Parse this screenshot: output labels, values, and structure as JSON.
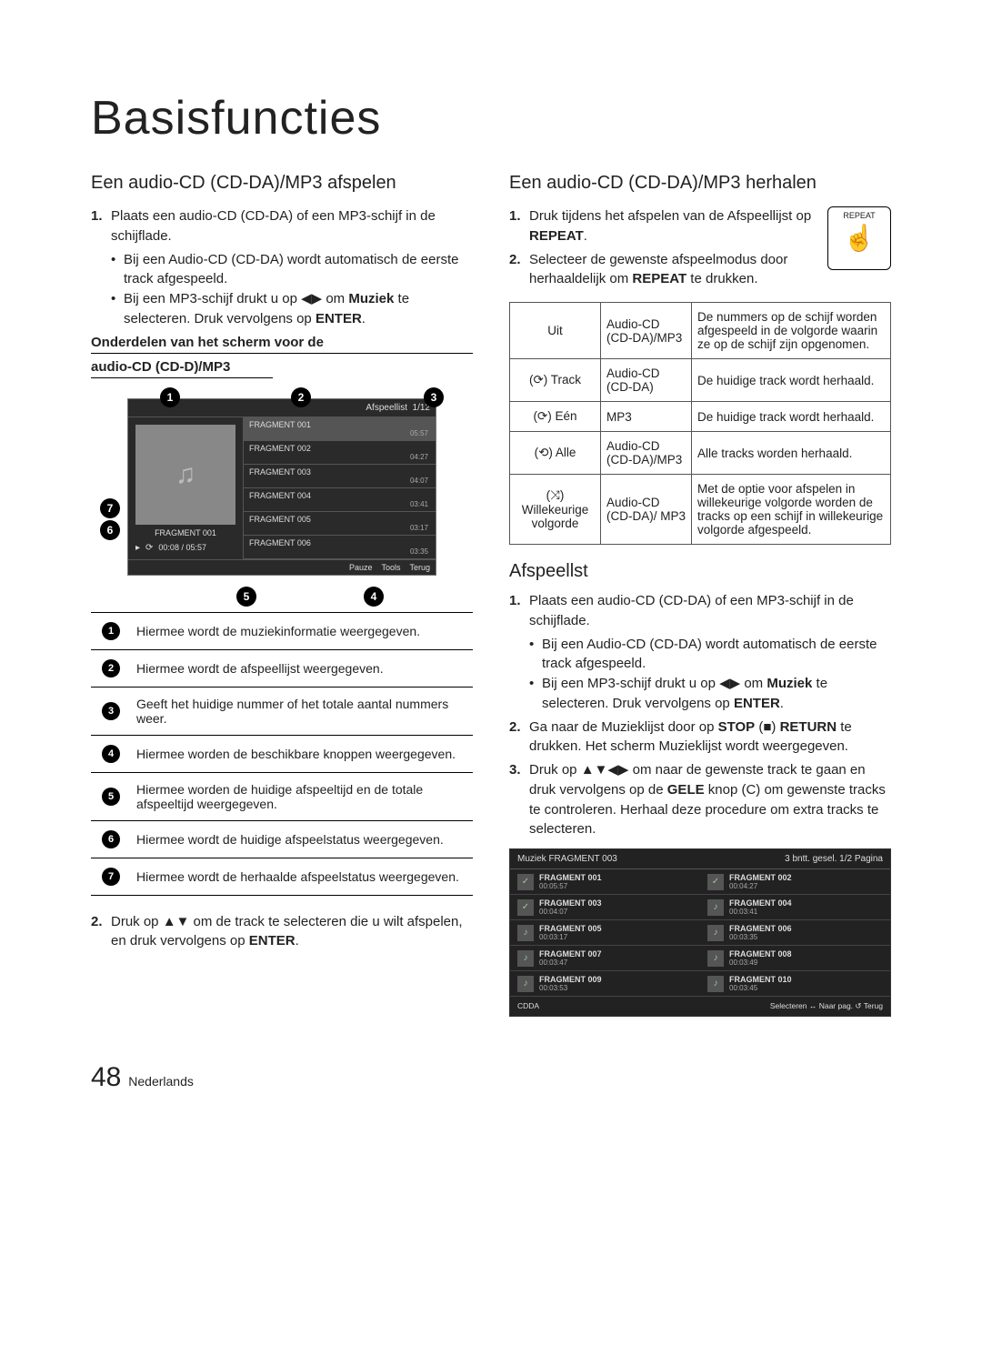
{
  "page": {
    "title": "Basisfuncties",
    "number": "48",
    "lang": "Nederlands"
  },
  "left": {
    "heading": "Een audio-CD (CD-DA)/MP3 afspelen",
    "step1_num": "1.",
    "step1_intro": "Plaats een audio-CD (CD-DA) of een MP3-schijf in de schijflade.",
    "step1_b1": "Bij een Audio-CD (CD-DA) wordt automatisch de eerste track afgespeeld.",
    "step1_b2a": "Bij een MP3-schijf drukt u op ◀▶ om ",
    "step1_b2b": "Muziek",
    "step1_b2c": " te selecteren. Druk vervolgens op ",
    "step1_b2d": "ENTER",
    "step1_b2e": ".",
    "sub1": "Onderdelen van het scherm voor de",
    "sub2": "audio-CD (CD-D)/MP3",
    "player": {
      "playlist_label": "Afspeellist",
      "counter": "1/12",
      "frags": [
        {
          "name": "FRAGMENT 001",
          "time": "05:57"
        },
        {
          "name": "FRAGMENT 002",
          "time": "04:27"
        },
        {
          "name": "FRAGMENT 003",
          "time": "04:07"
        },
        {
          "name": "FRAGMENT 004",
          "time": "03:41"
        },
        {
          "name": "FRAGMENT 005",
          "time": "03:17"
        },
        {
          "name": "FRAGMENT 006",
          "time": "03:35"
        }
      ],
      "current_title": "FRAGMENT 001",
      "time": "00:08 / 05:57",
      "pauze": "Pauze",
      "tools": "Tools",
      "terug": "Terug"
    },
    "legend": [
      "Hiermee wordt de muziekinformatie weergegeven.",
      "Hiermee wordt de afspeellijst weergegeven.",
      "Geeft het huidige nummer of het totale aantal nummers weer.",
      "Hiermee worden de beschikbare knoppen weergegeven.",
      "Hiermee worden de huidige afspeeltijd en de totale afspeeltijd weergegeven.",
      "Hiermee wordt de huidige afspeelstatus weergegeven.",
      "Hiermee wordt de herhaalde afspeelstatus weergegeven."
    ],
    "step2_num": "2.",
    "step2a": "Druk op ▲▼ om de track te selecteren die u wilt afspelen, en druk vervolgens op ",
    "step2b": "ENTER",
    "step2c": "."
  },
  "right": {
    "heading": "Een audio-CD (CD-DA)/MP3 herhalen",
    "repeat_label": "REPEAT",
    "step1_num": "1.",
    "step1a": "Druk tijdens het afspelen van de Afspeellijst op ",
    "step1b": "REPEAT",
    "step1c": ".",
    "step2_num": "2.",
    "step2a": "Selecteer de gewenste afspeelmodus door herhaaldelijk om ",
    "step2b": "REPEAT",
    "step2c": " te drukken.",
    "table": [
      {
        "c1": "Uit",
        "c2": "Audio-CD (CD-DA)/MP3",
        "c3": "De nummers op de schijf worden afgespeeld in de volgorde waarin ze op de schijf zijn opgenomen."
      },
      {
        "c1": "(⟳) Track",
        "c2": "Audio-CD (CD-DA)",
        "c3": "De huidige track wordt herhaald."
      },
      {
        "c1": "(⟳) Eén",
        "c2": "MP3",
        "c3": "De huidige track wordt herhaald."
      },
      {
        "c1": "(⟲) Alle",
        "c2": "Audio-CD (CD-DA)/MP3",
        "c3": "Alle tracks worden herhaald."
      },
      {
        "c1": "(⤨) Willekeurige volgorde",
        "c2": "Audio-CD (CD-DA)/ MP3",
        "c3": "Met de optie voor afspelen in willekeurige volgorde worden de tracks op een schijf in willekeurige volgorde afgespeeld."
      }
    ],
    "afspeellist_heading": "Afspeellst",
    "afs_step1_num": "1.",
    "afs_step1_intro": "Plaats een audio-CD (CD-DA) of een MP3-schijf in de schijflade.",
    "afs_step1_b1": "Bij een Audio-CD (CD-DA) wordt automatisch de eerste track afgespeeld.",
    "afs_step1_b2a": "Bij een MP3-schijf drukt u op ◀▶ om ",
    "afs_step1_b2b": "Muziek",
    "afs_step1_b2c": " te selecteren. Druk vervolgens op ",
    "afs_step1_b2d": "ENTER",
    "afs_step1_b2e": ".",
    "afs_step2_num": "2.",
    "afs_step2a": "Ga naar de Muzieklijst door op ",
    "afs_step2b": "STOP",
    "afs_step2c": " (■) ",
    "afs_step2d": "RETURN",
    "afs_step2e": " te drukken. Het scherm Muzieklijst wordt weergegeven.",
    "afs_step3_num": "3.",
    "afs_step3a": "Druk op ▲▼◀▶ om naar de gewenste track te gaan en druk vervolgens op de ",
    "afs_step3b": "GELE",
    "afs_step3c": " knop (C) om gewenste tracks te controleren. Herhaal deze procedure om extra tracks te selecteren.",
    "muziek": {
      "title": "Muziek  FRAGMENT 003",
      "meta": "3 bntt. gesel.   1/2 Pagina",
      "items": [
        {
          "name": "FRAGMENT 001",
          "time": "00:05:57",
          "chk": true
        },
        {
          "name": "FRAGMENT 002",
          "time": "00:04:27",
          "chk": true
        },
        {
          "name": "FRAGMENT 003",
          "time": "00:04:07",
          "chk": true
        },
        {
          "name": "FRAGMENT 004",
          "time": "00:03:41",
          "chk": false
        },
        {
          "name": "FRAGMENT 005",
          "time": "00:03:17",
          "chk": false
        },
        {
          "name": "FRAGMENT 006",
          "time": "00:03:35",
          "chk": false
        },
        {
          "name": "FRAGMENT 007",
          "time": "00:03:47",
          "chk": false
        },
        {
          "name": "FRAGMENT 008",
          "time": "00:03:49",
          "chk": false
        },
        {
          "name": "FRAGMENT 009",
          "time": "00:03:53",
          "chk": false
        },
        {
          "name": "FRAGMENT 010",
          "time": "00:03:45",
          "chk": false
        }
      ],
      "footer_left": "CDDA",
      "footer_right": "Selecteren  ↔ Naar pag.  ↺ Terug"
    }
  }
}
